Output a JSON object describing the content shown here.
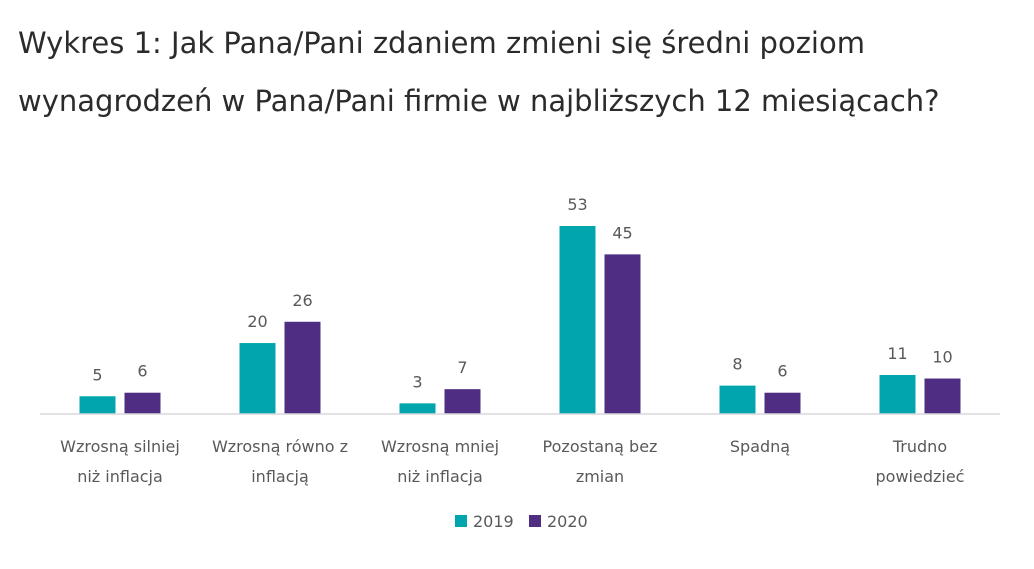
{
  "chart_data": {
    "type": "bar",
    "title": "Wykres 1: Jak Pana/Pani zdaniem zmieni się średni poziom wynagrodzeń w Pana/Pani firmie w najbliższych 12 miesiącach?",
    "categories": [
      [
        "Wzrosną silniej",
        "niż inflacja"
      ],
      [
        "Wzrosną równo z",
        "inflacją"
      ],
      [
        "Wzrosną mniej",
        "niż inflacja"
      ],
      [
        "Pozostaną bez",
        "zmian"
      ],
      [
        "Spadną"
      ],
      [
        "Trudno",
        "powiedzieć"
      ]
    ],
    "series": [
      {
        "name": "2019",
        "color": "#00A5AE",
        "values": [
          5,
          20,
          3,
          53,
          8,
          11
        ]
      },
      {
        "name": "2020",
        "color": "#4E2D82",
        "values": [
          6,
          26,
          7,
          45,
          6,
          10
        ]
      }
    ],
    "ylim": [
      0,
      53
    ],
    "legend_position": "bottom",
    "grid": false,
    "axis_color": "#d9d9d9"
  }
}
